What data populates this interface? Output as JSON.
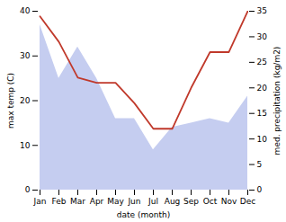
{
  "chart_data": {
    "type": "combo",
    "categories": [
      "Jan",
      "Feb",
      "Mar",
      "Apr",
      "May",
      "Jun",
      "Jul",
      "Aug",
      "Sep",
      "Oct",
      "Nov",
      "Dec"
    ],
    "xlabel": "date (month)",
    "ylabel": "max temp (C)",
    "y2label": "med. precipitation (kg/m2)",
    "ylim": [
      0,
      40
    ],
    "yticks": [
      0,
      10,
      20,
      30,
      40
    ],
    "y2lim": [
      0,
      35
    ],
    "y2ticks": [
      0,
      5,
      10,
      15,
      20,
      25,
      30,
      35
    ],
    "grid": false,
    "series": [
      {
        "type": "area",
        "color": "#c5cdf0",
        "values": [
          37,
          25,
          32,
          25,
          16,
          16,
          9,
          14,
          15,
          16,
          15,
          21
        ]
      },
      {
        "type": "line",
        "color": "#c0392b",
        "axis": "y2",
        "values": [
          34,
          29,
          22,
          21,
          21,
          17,
          12,
          12,
          20,
          27,
          27,
          35
        ]
      }
    ]
  }
}
